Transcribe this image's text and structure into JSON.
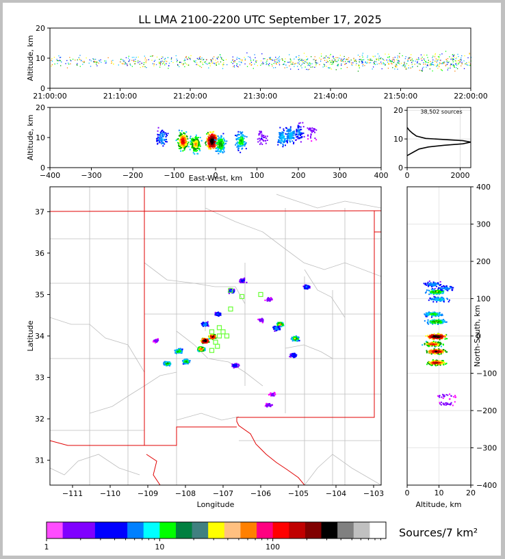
{
  "title": "LL LMA 2100-2200 UTC September 17, 2025",
  "chart_data": [
    {
      "id": "time-altitude",
      "type": "scatter",
      "ylabel": "Altitude, km",
      "xlim": [
        "21:00:00",
        "22:00:00"
      ],
      "ylim": [
        0,
        20
      ],
      "x_ticks": [
        "21:00:00",
        "21:10:00",
        "21:20:00",
        "21:30:00",
        "21:40:00",
        "21:50:00",
        "22:00:00"
      ],
      "y_ticks": [
        "0",
        "10",
        "20"
      ]
    },
    {
      "id": "ew-altitude",
      "type": "heatmap",
      "xlabel": "East-West, km",
      "ylabel": "Altitude, km",
      "xlim": [
        -400,
        400
      ],
      "ylim": [
        0,
        20
      ],
      "x_ticks": [
        "−400",
        "−300",
        "−200",
        "−100",
        "0",
        "100",
        "200",
        "300",
        "400"
      ],
      "y_ticks": [
        "0",
        "10",
        "20"
      ]
    },
    {
      "id": "altitude-histogram",
      "type": "line",
      "annotation": "38,502 sources",
      "xlim": [
        0,
        2400
      ],
      "ylim": [
        0,
        21
      ],
      "x_ticks": [
        "0",
        "2000"
      ],
      "y_ticks": [
        "0",
        "10",
        "20"
      ],
      "profile": [
        [
          0,
          4.2
        ],
        [
          250,
          5.5
        ],
        [
          450,
          6.5
        ],
        [
          800,
          7.2
        ],
        [
          1400,
          7.8
        ],
        [
          2100,
          8.3
        ],
        [
          2400,
          8.9
        ],
        [
          2100,
          9.4
        ],
        [
          1400,
          9.8
        ],
        [
          700,
          10.2
        ],
        [
          350,
          11
        ],
        [
          200,
          12
        ],
        [
          80,
          13
        ],
        [
          0,
          14
        ]
      ]
    },
    {
      "id": "plan-view",
      "type": "heatmap",
      "xlabel": "Longitude",
      "ylabel": "Latitude",
      "xlim": [
        -111.6,
        -102.8
      ],
      "ylim": [
        30.4,
        37.6
      ],
      "x_ticks": [
        "−111",
        "−110",
        "−109",
        "−108",
        "−107",
        "−106",
        "−105",
        "−104",
        "−103"
      ],
      "y_ticks": [
        "31",
        "32",
        "33",
        "34",
        "35",
        "36",
        "37"
      ],
      "stations": [
        [
          -106.8,
          35.1
        ],
        [
          -106.5,
          34.95
        ],
        [
          -106.0,
          35.0
        ],
        [
          -106.8,
          34.65
        ],
        [
          -107.1,
          34.2
        ],
        [
          -107.3,
          34.1
        ],
        [
          -107.1,
          34.0
        ],
        [
          -106.9,
          34.0
        ],
        [
          -107.2,
          33.85
        ],
        [
          -107.15,
          33.75
        ],
        [
          -107.3,
          33.65
        ],
        [
          -107.0,
          34.1
        ]
      ],
      "clusters": [
        [
          -107.5,
          33.9,
          55
        ],
        [
          -107.3,
          34.0,
          45
        ],
        [
          -107.6,
          33.7,
          35
        ],
        [
          -108.2,
          33.65,
          25
        ],
        [
          -108.0,
          33.4,
          25
        ],
        [
          -108.5,
          33.35,
          25
        ],
        [
          -107.5,
          34.3,
          15
        ],
        [
          -107.15,
          34.55,
          12
        ],
        [
          -106.8,
          35.1,
          12
        ],
        [
          -106.5,
          35.35,
          10
        ],
        [
          -105.5,
          34.3,
          30
        ],
        [
          -105.1,
          33.95,
          28
        ],
        [
          -105.6,
          34.2,
          15
        ],
        [
          -105.15,
          33.55,
          12
        ],
        [
          -104.8,
          35.2,
          12
        ],
        [
          -106.7,
          33.3,
          10
        ],
        [
          -105.8,
          32.35,
          6
        ],
        [
          -105.7,
          32.6,
          5
        ],
        [
          -106.0,
          34.4,
          6
        ],
        [
          -105.8,
          34.9,
          6
        ],
        [
          -108.8,
          33.9,
          5
        ]
      ]
    },
    {
      "id": "altitude-ns",
      "type": "heatmap",
      "xlabel": "Altitude, km",
      "ylabel": "North-South, km",
      "xlim": [
        0,
        20
      ],
      "ylim": [
        -400,
        400
      ],
      "x_ticks": [
        "0",
        "10",
        "20"
      ],
      "y_ticks": [
        "−400",
        "−300",
        "−200",
        "−100",
        "0",
        "100",
        "200",
        "300",
        "400"
      ]
    }
  ],
  "colorbar": {
    "label": "Sources/7 km²",
    "tick_labels": [
      "1",
      "10",
      "100"
    ],
    "colors": [
      "#ff4cff",
      "#8000ff",
      "#8000ff",
      "#0000ff",
      "#0000ff",
      "#0080ff",
      "#00ffff",
      "#00ff00",
      "#008040",
      "#408080",
      "#ffff00",
      "#ffc080",
      "#ff8000",
      "#ff0080",
      "#ff0000",
      "#c00000",
      "#800000",
      "#000000",
      "#808080",
      "#c0c0c0",
      "#ffffff"
    ]
  }
}
